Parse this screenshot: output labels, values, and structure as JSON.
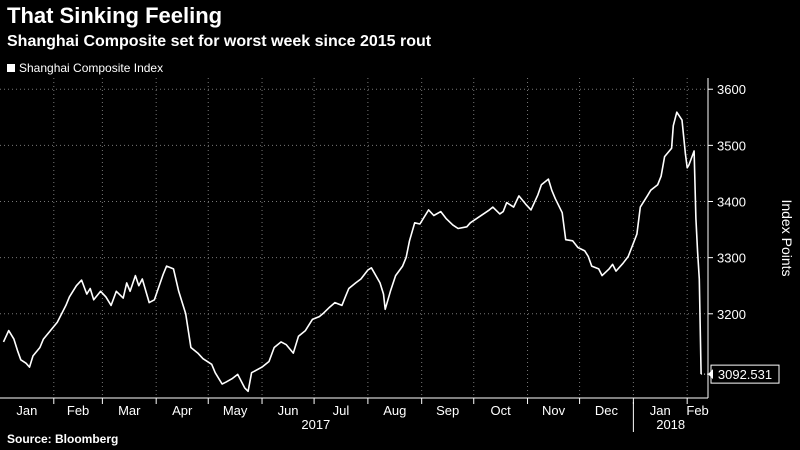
{
  "header": {
    "title": "That Sinking Feeling",
    "subtitle": "Shanghai Composite set for worst week since 2015 rout"
  },
  "footer": {
    "source": "Source: Bloomberg"
  },
  "chart_data": {
    "type": "line",
    "title": "That Sinking Feeling",
    "subtitle": "Shanghai Composite set for worst week since 2015 rout",
    "ylabel": "Index Points",
    "xlabel": "",
    "ylim": [
      3050,
      3620
    ],
    "yticks": [
      3200,
      3300,
      3400,
      3500,
      3600
    ],
    "grid": true,
    "legend": "top-left",
    "line_color": "#ffffff",
    "last_value_label": "3092.531",
    "month_ticks": [
      "Jan",
      "Feb",
      "Mar",
      "Apr",
      "May",
      "Jun",
      "Jul",
      "Aug",
      "Sep",
      "Oct",
      "Nov",
      "Dec",
      "Jan",
      "Feb"
    ],
    "year_labels": [
      "2017",
      "2018"
    ],
    "series": [
      {
        "name": "Shanghai Composite Index",
        "x": [
          "2017-01-03",
          "2017-01-06",
          "2017-01-09",
          "2017-01-11",
          "2017-01-13",
          "2017-01-16",
          "2017-01-18",
          "2017-01-20",
          "2017-01-24",
          "2017-01-26",
          "2017-02-03",
          "2017-02-08",
          "2017-02-10",
          "2017-02-14",
          "2017-02-17",
          "2017-02-20",
          "2017-02-22",
          "2017-02-24",
          "2017-02-28",
          "2017-03-03",
          "2017-03-06",
          "2017-03-09",
          "2017-03-13",
          "2017-03-15",
          "2017-03-17",
          "2017-03-20",
          "2017-03-22",
          "2017-03-24",
          "2017-03-28",
          "2017-03-31",
          "2017-04-05",
          "2017-04-07",
          "2017-04-11",
          "2017-04-14",
          "2017-04-18",
          "2017-04-21",
          "2017-04-25",
          "2017-04-28",
          "2017-05-03",
          "2017-05-05",
          "2017-05-09",
          "2017-05-11",
          "2017-05-15",
          "2017-05-18",
          "2017-05-22",
          "2017-05-24",
          "2017-05-26",
          "2017-06-01",
          "2017-06-05",
          "2017-06-08",
          "2017-06-12",
          "2017-06-15",
          "2017-06-19",
          "2017-06-22",
          "2017-06-26",
          "2017-06-30",
          "2017-07-04",
          "2017-07-06",
          "2017-07-10",
          "2017-07-13",
          "2017-07-17",
          "2017-07-19",
          "2017-07-21",
          "2017-07-25",
          "2017-07-28",
          "2017-08-01",
          "2017-08-03",
          "2017-08-08",
          "2017-08-10",
          "2017-08-11",
          "2017-08-14",
          "2017-08-17",
          "2017-08-21",
          "2017-08-23",
          "2017-08-25",
          "2017-08-28",
          "2017-08-31",
          "2017-09-05",
          "2017-09-08",
          "2017-09-12",
          "2017-09-15",
          "2017-09-19",
          "2017-09-22",
          "2017-09-27",
          "2017-09-29",
          "2017-10-10",
          "2017-10-12",
          "2017-10-16",
          "2017-10-18",
          "2017-10-20",
          "2017-10-24",
          "2017-10-27",
          "2017-10-31",
          "2017-11-03",
          "2017-11-07",
          "2017-11-09",
          "2017-11-13",
          "2017-11-15",
          "2017-11-17",
          "2017-11-21",
          "2017-11-23",
          "2017-11-27",
          "2017-11-30",
          "2017-12-04",
          "2017-12-06",
          "2017-12-08",
          "2017-12-12",
          "2017-12-14",
          "2017-12-18",
          "2017-12-20",
          "2017-12-22",
          "2017-12-26",
          "2017-12-29",
          "2018-01-03",
          "2018-01-05",
          "2018-01-09",
          "2018-01-11",
          "2018-01-15",
          "2018-01-17",
          "2018-01-19",
          "2018-01-23",
          "2018-01-24",
          "2018-01-26",
          "2018-01-29",
          "2018-01-31",
          "2018-02-01",
          "2018-02-02",
          "2018-02-05",
          "2018-02-06",
          "2018-02-07",
          "2018-02-08",
          "2018-02-09"
        ],
        "values": [
          3150,
          3170,
          3155,
          3135,
          3118,
          3112,
          3105,
          3125,
          3140,
          3155,
          3185,
          3215,
          3230,
          3250,
          3260,
          3235,
          3245,
          3225,
          3240,
          3230,
          3215,
          3240,
          3228,
          3255,
          3240,
          3268,
          3250,
          3262,
          3220,
          3225,
          3270,
          3285,
          3280,
          3240,
          3200,
          3140,
          3130,
          3120,
          3110,
          3095,
          3075,
          3078,
          3085,
          3092,
          3068,
          3062,
          3095,
          3105,
          3115,
          3140,
          3150,
          3145,
          3130,
          3160,
          3170,
          3190,
          3195,
          3200,
          3212,
          3220,
          3215,
          3230,
          3245,
          3255,
          3262,
          3278,
          3282,
          3255,
          3235,
          3208,
          3240,
          3268,
          3285,
          3300,
          3330,
          3362,
          3360,
          3385,
          3375,
          3382,
          3370,
          3358,
          3352,
          3355,
          3362,
          3385,
          3390,
          3378,
          3382,
          3398,
          3390,
          3410,
          3395,
          3385,
          3412,
          3430,
          3440,
          3420,
          3405,
          3380,
          3332,
          3330,
          3318,
          3312,
          3302,
          3285,
          3280,
          3268,
          3280,
          3288,
          3276,
          3290,
          3302,
          3342,
          3390,
          3410,
          3420,
          3430,
          3445,
          3480,
          3495,
          3535,
          3559,
          3545,
          3485,
          3460,
          3465,
          3490,
          3370,
          3310,
          3262,
          3092.531
        ]
      }
    ]
  }
}
